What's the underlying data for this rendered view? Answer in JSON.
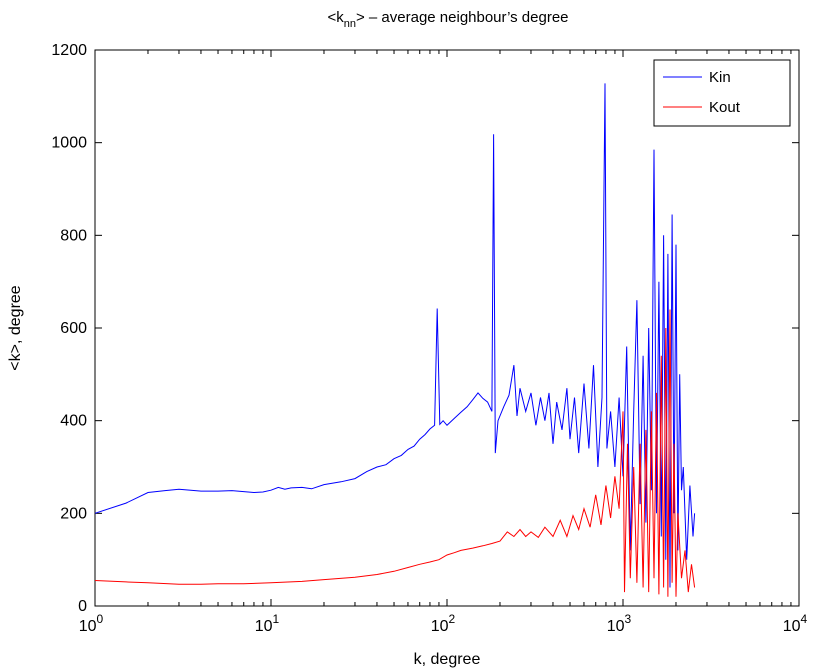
{
  "chart_data": {
    "type": "line",
    "title": "<k",
    "title_subscript": "nn",
    "title_rest": "> – average neighbour’s degree",
    "xlabel": "k, degree",
    "ylabel": "<k>, degree",
    "x_scale": "log",
    "xlim": [
      1,
      10000
    ],
    "ylim": [
      0,
      1200
    ],
    "x_ticks": [
      {
        "base": "10",
        "exp": "0"
      },
      {
        "base": "10",
        "exp": "1"
      },
      {
        "base": "10",
        "exp": "2"
      },
      {
        "base": "10",
        "exp": "3"
      },
      {
        "base": "10",
        "exp": "4"
      }
    ],
    "y_ticks": [
      "0",
      "200",
      "400",
      "600",
      "800",
      "1000",
      "1200"
    ],
    "grid": false,
    "legend_position": "top-right",
    "series": [
      {
        "name": "Kin",
        "color": "#0000ff",
        "points": [
          [
            1,
            200
          ],
          [
            1.5,
            222
          ],
          [
            2,
            245
          ],
          [
            2.5,
            249
          ],
          [
            3,
            252
          ],
          [
            3.5,
            250
          ],
          [
            4,
            248
          ],
          [
            5,
            248
          ],
          [
            6,
            249
          ],
          [
            7,
            247
          ],
          [
            8,
            245
          ],
          [
            9,
            246
          ],
          [
            10,
            250
          ],
          [
            11,
            256
          ],
          [
            12,
            252
          ],
          [
            13,
            255
          ],
          [
            15,
            256
          ],
          [
            17,
            253
          ],
          [
            20,
            262
          ],
          [
            25,
            268
          ],
          [
            30,
            275
          ],
          [
            35,
            290
          ],
          [
            40,
            300
          ],
          [
            45,
            305
          ],
          [
            50,
            318
          ],
          [
            55,
            325
          ],
          [
            60,
            338
          ],
          [
            65,
            345
          ],
          [
            70,
            360
          ],
          [
            75,
            370
          ],
          [
            80,
            382
          ],
          [
            85,
            390
          ],
          [
            88,
            642
          ],
          [
            91,
            392
          ],
          [
            95,
            400
          ],
          [
            100,
            390
          ],
          [
            110,
            405
          ],
          [
            120,
            418
          ],
          [
            130,
            430
          ],
          [
            140,
            445
          ],
          [
            150,
            460
          ],
          [
            160,
            448
          ],
          [
            170,
            440
          ],
          [
            180,
            420
          ],
          [
            184,
            1018
          ],
          [
            188,
            330
          ],
          [
            195,
            400
          ],
          [
            210,
            430
          ],
          [
            225,
            455
          ],
          [
            240,
            520
          ],
          [
            250,
            410
          ],
          [
            260,
            470
          ],
          [
            280,
            420
          ],
          [
            300,
            460
          ],
          [
            320,
            390
          ],
          [
            340,
            450
          ],
          [
            360,
            400
          ],
          [
            380,
            460
          ],
          [
            400,
            350
          ],
          [
            420,
            440
          ],
          [
            450,
            380
          ],
          [
            480,
            470
          ],
          [
            500,
            360
          ],
          [
            530,
            450
          ],
          [
            560,
            330
          ],
          [
            600,
            480
          ],
          [
            640,
            340
          ],
          [
            680,
            520
          ],
          [
            720,
            300
          ],
          [
            760,
            450
          ],
          [
            790,
            1128
          ],
          [
            810,
            340
          ],
          [
            850,
            420
          ],
          [
            900,
            300
          ],
          [
            950,
            450
          ],
          [
            1000,
            280
          ],
          [
            1050,
            560
          ],
          [
            1100,
            120
          ],
          [
            1150,
            420
          ],
          [
            1200,
            660
          ],
          [
            1250,
            220
          ],
          [
            1300,
            540
          ],
          [
            1350,
            180
          ],
          [
            1400,
            600
          ],
          [
            1450,
            250
          ],
          [
            1500,
            985
          ],
          [
            1550,
            200
          ],
          [
            1600,
            700
          ],
          [
            1650,
            150
          ],
          [
            1700,
            800
          ],
          [
            1750,
            100
          ],
          [
            1800,
            760
          ],
          [
            1850,
            40
          ],
          [
            1900,
            845
          ],
          [
            1950,
            200
          ],
          [
            2000,
            780
          ],
          [
            2050,
            120
          ],
          [
            2100,
            500
          ],
          [
            2150,
            250
          ],
          [
            2200,
            300
          ],
          [
            2300,
            100
          ],
          [
            2400,
            260
          ],
          [
            2500,
            150
          ],
          [
            2550,
            200
          ]
        ]
      },
      {
        "name": "Kout",
        "color": "#ff0000",
        "points": [
          [
            1,
            55
          ],
          [
            1.5,
            52
          ],
          [
            2,
            50
          ],
          [
            3,
            47
          ],
          [
            4,
            47
          ],
          [
            5,
            48
          ],
          [
            7,
            48
          ],
          [
            10,
            50
          ],
          [
            15,
            53
          ],
          [
            20,
            57
          ],
          [
            30,
            62
          ],
          [
            40,
            68
          ],
          [
            50,
            75
          ],
          [
            60,
            83
          ],
          [
            70,
            90
          ],
          [
            80,
            95
          ],
          [
            90,
            100
          ],
          [
            100,
            110
          ],
          [
            110,
            115
          ],
          [
            120,
            120
          ],
          [
            140,
            125
          ],
          [
            160,
            130
          ],
          [
            180,
            135
          ],
          [
            200,
            140
          ],
          [
            220,
            160
          ],
          [
            240,
            150
          ],
          [
            260,
            165
          ],
          [
            280,
            150
          ],
          [
            300,
            160
          ],
          [
            330,
            148
          ],
          [
            360,
            170
          ],
          [
            400,
            150
          ],
          [
            440,
            185
          ],
          [
            480,
            150
          ],
          [
            520,
            195
          ],
          [
            560,
            165
          ],
          [
            600,
            210
          ],
          [
            650,
            170
          ],
          [
            700,
            240
          ],
          [
            750,
            175
          ],
          [
            800,
            260
          ],
          [
            850,
            190
          ],
          [
            900,
            280
          ],
          [
            950,
            210
          ],
          [
            1000,
            420
          ],
          [
            1020,
            30
          ],
          [
            1060,
            350
          ],
          [
            1100,
            60
          ],
          [
            1150,
            300
          ],
          [
            1200,
            50
          ],
          [
            1250,
            350
          ],
          [
            1300,
            40
          ],
          [
            1350,
            380
          ],
          [
            1400,
            30
          ],
          [
            1450,
            420
          ],
          [
            1500,
            60
          ],
          [
            1550,
            460
          ],
          [
            1600,
            25
          ],
          [
            1650,
            540
          ],
          [
            1700,
            40
          ],
          [
            1750,
            600
          ],
          [
            1800,
            20
          ],
          [
            1850,
            640
          ],
          [
            1900,
            50
          ],
          [
            1950,
            350
          ],
          [
            2000,
            20
          ],
          [
            2050,
            200
          ],
          [
            2150,
            60
          ],
          [
            2250,
            120
          ],
          [
            2350,
            30
          ],
          [
            2450,
            90
          ],
          [
            2550,
            40
          ]
        ]
      }
    ]
  }
}
